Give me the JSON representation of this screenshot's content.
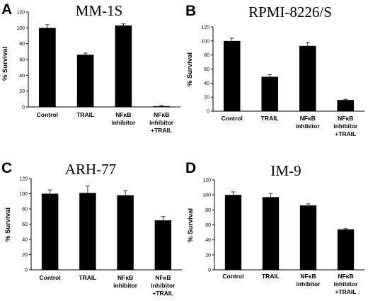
{
  "chart_data": [
    {
      "panel": "A",
      "type": "bar",
      "title": "MM-1S",
      "ylabel": "% Survival",
      "ylim": [
        0,
        120
      ],
      "yticks": [
        0,
        20,
        40,
        60,
        80,
        100,
        120
      ],
      "categories": [
        [
          "Control"
        ],
        [
          "TRAIL"
        ],
        [
          "NFκB",
          "inhibitor"
        ],
        [
          "NFκB",
          "inhibitor",
          "+TRAIL"
        ]
      ],
      "values": [
        100,
        66,
        103,
        1
      ],
      "errors": [
        4,
        2,
        2,
        1
      ]
    },
    {
      "panel": "B",
      "type": "bar",
      "title": "RPMI-8226/S",
      "ylabel": "% Survival",
      "ylim": [
        0,
        120
      ],
      "yticks": [
        0,
        20,
        40,
        60,
        80,
        100,
        120
      ],
      "categories": [
        [
          "Control"
        ],
        [
          "TRAIL"
        ],
        [
          "NFκB",
          "inhibitor"
        ],
        [
          "NFκB",
          "inhibitor",
          "+TRAIL"
        ]
      ],
      "values": [
        100,
        49,
        93,
        16
      ],
      "errors": [
        4,
        3,
        5,
        1
      ]
    },
    {
      "panel": "C",
      "type": "bar",
      "title": "ARH-77",
      "ylabel": "% Survival",
      "ylim": [
        0,
        120
      ],
      "yticks": [
        0,
        20,
        40,
        60,
        80,
        100,
        120
      ],
      "categories": [
        [
          "Control"
        ],
        [
          "TRAIL"
        ],
        [
          "NFκB",
          "inhibitor"
        ],
        [
          "NFκB",
          "inhibitor",
          "+TRAIL"
        ]
      ],
      "values": [
        100,
        101,
        98,
        65
      ],
      "errors": [
        5,
        9,
        6,
        5
      ]
    },
    {
      "panel": "D",
      "type": "bar",
      "title": "IM-9",
      "ylabel": "% Survival",
      "ylim": [
        0,
        120
      ],
      "yticks": [
        0,
        20,
        40,
        60,
        80,
        100,
        120
      ],
      "categories": [
        [
          "Control"
        ],
        [
          "TRAIL"
        ],
        [
          "NFκB",
          "inhibitor"
        ],
        [
          "NFκB",
          "inhibitor",
          "+TRAIL"
        ]
      ],
      "values": [
        100,
        97,
        86,
        54
      ],
      "errors": [
        4,
        5,
        2,
        1
      ]
    }
  ]
}
